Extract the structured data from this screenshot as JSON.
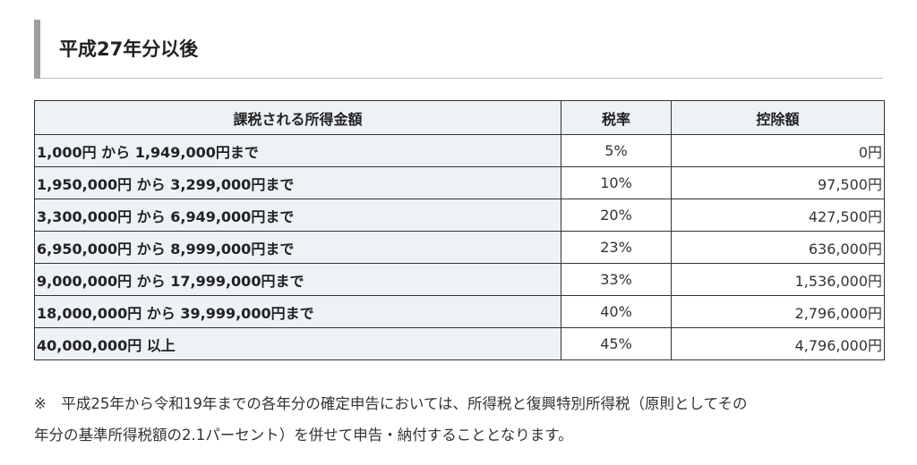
{
  "section": {
    "title": "平成27年分以後"
  },
  "table": {
    "headers": {
      "range": "課税される所得金額",
      "rate": "税率",
      "deduction": "控除額"
    },
    "rows": [
      {
        "range": "1,000円 から 1,949,000円まで",
        "rate": "5%",
        "deduction": "0円"
      },
      {
        "range": "1,950,000円 から 3,299,000円まで",
        "rate": "10%",
        "deduction": "97,500円"
      },
      {
        "range": "3,300,000円 から 6,949,000円まで",
        "rate": "20%",
        "deduction": "427,500円"
      },
      {
        "range": "6,950,000円 から 8,999,000円まで",
        "rate": "23%",
        "deduction": "636,000円"
      },
      {
        "range": "9,000,000円 から 17,999,000円まで",
        "rate": "33%",
        "deduction": "1,536,000円"
      },
      {
        "range": "18,000,000円 から 39,999,000円まで",
        "rate": "40%",
        "deduction": "2,796,000円"
      },
      {
        "range": "40,000,000円 以上",
        "rate": "45%",
        "deduction": "4,796,000円"
      }
    ]
  },
  "note": {
    "line1": "※　平成25年から令和19年までの各年分の確定申告においては、所得税と復興特別所得税（原則としてその",
    "line2": "年分の基準所得税額の2.1パーセント）を併せて申告・納付することとなります。"
  },
  "colors": {
    "header_bg": "#eef2f7",
    "heading_bar": "#9e9e9e",
    "border": "#333333"
  }
}
